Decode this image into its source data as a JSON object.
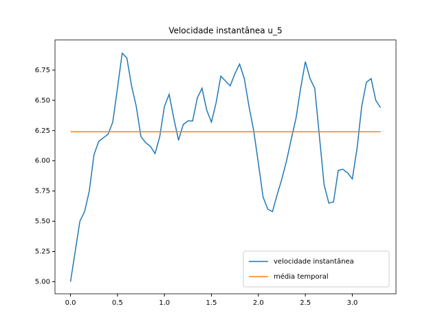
{
  "chart_data": {
    "type": "line",
    "title": "Velocidade instantânea u_5",
    "series": [
      {
        "name": "velocidade instantânea",
        "color": "#1f77b4",
        "x": [
          0,
          0.05,
          0.1,
          0.15,
          0.2,
          0.25,
          0.3,
          0.35,
          0.4,
          0.45,
          0.5,
          0.55,
          0.6,
          0.65,
          0.7,
          0.75,
          0.8,
          0.85,
          0.9,
          0.95,
          1.0,
          1.05,
          1.1,
          1.15,
          1.2,
          1.25,
          1.3,
          1.35,
          1.4,
          1.45,
          1.5,
          1.55,
          1.6,
          1.65,
          1.7,
          1.75,
          1.8,
          1.85,
          1.9,
          1.95,
          2.0,
          2.05,
          2.1,
          2.15,
          2.2,
          2.25,
          2.3,
          2.35,
          2.4,
          2.45,
          2.5,
          2.55,
          2.6,
          2.65,
          2.7,
          2.75,
          2.8,
          2.85,
          2.9,
          2.95,
          3.0,
          3.05,
          3.1,
          3.15,
          3.2,
          3.25,
          3.3
        ],
        "values": [
          5.0,
          5.25,
          5.5,
          5.58,
          5.75,
          6.05,
          6.16,
          6.19,
          6.22,
          6.32,
          6.6,
          6.89,
          6.85,
          6.62,
          6.45,
          6.2,
          6.15,
          6.12,
          6.06,
          6.2,
          6.45,
          6.55,
          6.35,
          6.17,
          6.3,
          6.33,
          6.33,
          6.52,
          6.6,
          6.42,
          6.32,
          6.48,
          6.7,
          6.66,
          6.62,
          6.72,
          6.8,
          6.68,
          6.45,
          6.25,
          5.98,
          5.7,
          5.6,
          5.58,
          5.72,
          5.85,
          6.0,
          6.18,
          6.35,
          6.6,
          6.82,
          6.68,
          6.6,
          6.2,
          5.8,
          5.65,
          5.66,
          5.92,
          5.93,
          5.9,
          5.85,
          6.1,
          6.45,
          6.65,
          6.68,
          6.5,
          6.44
        ]
      },
      {
        "name": "média temporal",
        "color": "#ff7f0e",
        "x": [
          0,
          3.3
        ],
        "values": [
          6.24,
          6.24
        ]
      }
    ],
    "xlim": [
      -0.165,
      3.465
    ],
    "ylim": [
      4.9,
      7.0
    ],
    "xticks": [
      {
        "value": 0,
        "label": "0.0"
      },
      0.5,
      {
        "value": 1,
        "label": "1.0"
      },
      1.5,
      {
        "value": 2,
        "label": "2.0"
      },
      2.5,
      {
        "value": 3,
        "label": "3.0"
      }
    ],
    "yticks": [
      {
        "value": 5,
        "label": "5.00"
      },
      5.25,
      {
        "value": 5.5,
        "label": "5.50"
      },
      5.75,
      {
        "value": 6,
        "label": "6.00"
      },
      6.25,
      {
        "value": 6.5,
        "label": "6.50"
      },
      6.75
    ],
    "legend": "lower right"
  }
}
